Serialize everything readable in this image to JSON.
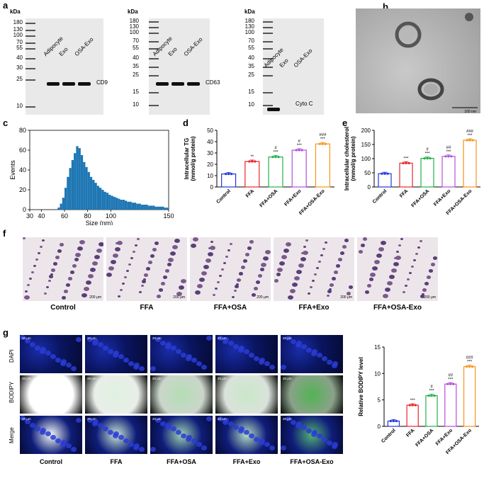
{
  "panel_labels": [
    "a",
    "b",
    "c",
    "d",
    "e",
    "f",
    "g"
  ],
  "blots": [
    {
      "kda_label": "kDa",
      "markers": [
        "180",
        "130",
        "100",
        "70",
        "55",
        "40",
        "30",
        "25",
        "10"
      ],
      "lanes": [
        "Adipocyte",
        "Exo",
        "OSA-Exo"
      ],
      "protein": "CD9"
    },
    {
      "kda_label": "kDa",
      "markers": [
        "180",
        "130",
        "100",
        "70",
        "55",
        "40",
        "35",
        "25",
        "15",
        "10"
      ],
      "lanes": [
        "Adipocyte",
        "Exo",
        "OSA-Exo"
      ],
      "protein": "CD63"
    },
    {
      "kda_label": "kDa",
      "markers": [
        "180",
        "130",
        "100",
        "70",
        "55",
        "40",
        "35",
        "25",
        "15",
        "10"
      ],
      "lanes": [
        "Adipocyte",
        "Exo",
        "OSA-Exo"
      ],
      "protein": "Cyto C"
    }
  ],
  "tem": {
    "scale_text": "100 nm"
  },
  "chart_data": [
    {
      "panel": "c",
      "type": "bar",
      "title": "",
      "xlabel": "Size (nm)",
      "ylabel": "Events",
      "xlim": [
        30,
        150
      ],
      "ylim": [
        0,
        80
      ],
      "xticks": [
        "30",
        "40",
        "60",
        "80",
        "100",
        "150"
      ],
      "yticks": [
        "0",
        "20",
        "40",
        "60",
        "80"
      ],
      "x": [
        55,
        57,
        59,
        61,
        63,
        65,
        67,
        69,
        71,
        73,
        75,
        77,
        79,
        81,
        83,
        85,
        87,
        89,
        91,
        93,
        95,
        97,
        99,
        101,
        103,
        105,
        107,
        109,
        111,
        113,
        115,
        117,
        119,
        121,
        123,
        125,
        127,
        129,
        131,
        133,
        135,
        137,
        139,
        141,
        143,
        145,
        147,
        149
      ],
      "values": [
        2,
        6,
        12,
        22,
        33,
        42,
        50,
        57,
        64,
        62,
        55,
        48,
        43,
        38,
        33,
        30,
        27,
        24,
        22,
        20,
        18,
        17,
        15,
        14,
        13,
        12,
        11,
        10,
        10,
        9,
        8,
        8,
        7,
        7,
        6,
        6,
        5,
        5,
        5,
        4,
        4,
        4,
        3,
        3,
        3,
        3,
        2,
        2
      ]
    },
    {
      "panel": "d",
      "type": "bar",
      "ylabel": "Intracellular TG\n(mmol/g protein)",
      "ylabel_lines": [
        "Intracellular TG",
        "(mmol/g protein)"
      ],
      "categories": [
        "Control",
        "FFA",
        "FFA+OSA",
        "FFA+Exo",
        "FFA+OSA-Exo"
      ],
      "values": [
        11.5,
        22.5,
        26.5,
        32.5,
        38
      ],
      "colors": [
        "#1f35e0",
        "#e8262a",
        "#22b14c",
        "#b84de0",
        "#f7941d"
      ],
      "ylim": [
        0,
        50
      ],
      "yticks": [
        "0",
        "10",
        "20",
        "30",
        "40",
        "50"
      ],
      "annotations": [
        [
          "",
          ""
        ],
        [
          "",
          "**"
        ],
        [
          "#",
          "***"
        ],
        [
          "#",
          "***"
        ],
        [
          "###",
          "***"
        ]
      ]
    },
    {
      "panel": "e",
      "type": "bar",
      "ylabel": "Intracellular cholesterol\n(mmol/g protein)",
      "ylabel_lines": [
        "Intracellular cholesterol",
        "(mmol/g protein)"
      ],
      "categories": [
        "Control",
        "FFA",
        "FFA+OSA",
        "FFA+Exo",
        "FFA+OSA-Exo"
      ],
      "values": [
        47,
        84,
        101,
        108,
        165
      ],
      "colors": [
        "#1f35e0",
        "#e8262a",
        "#22b14c",
        "#b84de0",
        "#f7941d"
      ],
      "ylim": [
        0,
        200
      ],
      "yticks": [
        "0",
        "50",
        "100",
        "150",
        "200"
      ],
      "annotations": [
        [
          "",
          ""
        ],
        [
          "",
          "***"
        ],
        [
          "#",
          "***"
        ],
        [
          "##",
          "***"
        ],
        [
          "###",
          "***"
        ]
      ]
    },
    {
      "panel": "g",
      "type": "bar",
      "ylabel": "Relative BODIPY level",
      "categories": [
        "Control",
        "FFA",
        "FFA+OSA",
        "FFA+Exo",
        "FFA+OSA-Exo"
      ],
      "values": [
        1,
        4,
        5.8,
        8,
        11.3
      ],
      "colors": [
        "#1f35e0",
        "#e8262a",
        "#22b14c",
        "#b84de0",
        "#f7941d"
      ],
      "ylim": [
        0,
        15
      ],
      "yticks": [
        "0",
        "5",
        "10",
        "15"
      ],
      "annotations": [
        [
          "",
          ""
        ],
        [
          "",
          "***"
        ],
        [
          "#",
          "***"
        ],
        [
          "##",
          "***"
        ],
        [
          "###",
          "***"
        ]
      ]
    }
  ],
  "oil_red": {
    "groups": [
      "Control",
      "FFA",
      "FFA+OSA",
      "FFA+Exo",
      "FFA+OSA-Exo"
    ],
    "scale_text": "200 μm"
  },
  "fluor": {
    "rows": [
      "DAPI",
      "BODIPY",
      "Merge"
    ],
    "groups": [
      "Control",
      "FFA",
      "FFA+OSA",
      "FFA+Exo",
      "FFA+OSA-Exo"
    ],
    "scale_text": "20 μm"
  }
}
